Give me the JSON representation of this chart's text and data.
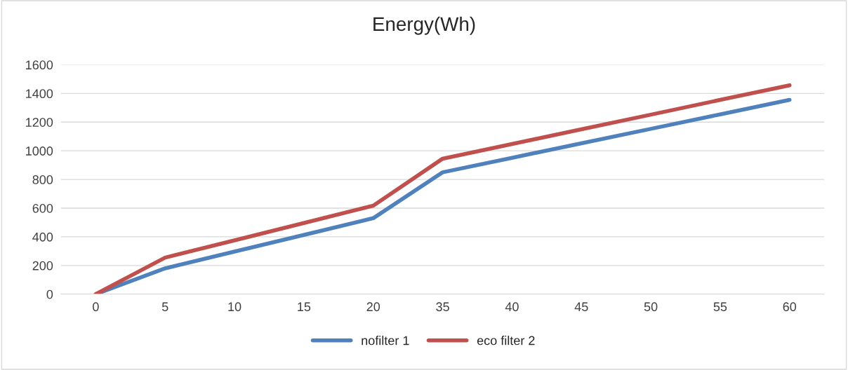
{
  "chart_data": {
    "type": "line",
    "title": "Energy(Wh)",
    "categories": [
      "0",
      "5",
      "10",
      "15",
      "20",
      "35",
      "40",
      "45",
      "50",
      "55",
      "60"
    ],
    "series": [
      {
        "name": "nofilter 1",
        "color": "#4f81bd",
        "values": [
          0,
          180,
          297,
          413,
          530,
          850,
          951,
          1052,
          1153,
          1254,
          1355
        ]
      },
      {
        "name": "eco filter 2",
        "color": "#c0504d",
        "values": [
          0,
          255,
          375,
          496,
          617,
          945,
          1047,
          1150,
          1252,
          1355,
          1457
        ]
      }
    ],
    "ylim": [
      0,
      1600
    ],
    "yticks": [
      0,
      200,
      400,
      600,
      800,
      1000,
      1200,
      1400,
      1600
    ],
    "grid": "y",
    "legend": "bottom",
    "marker": "none",
    "line_style": "solid"
  }
}
